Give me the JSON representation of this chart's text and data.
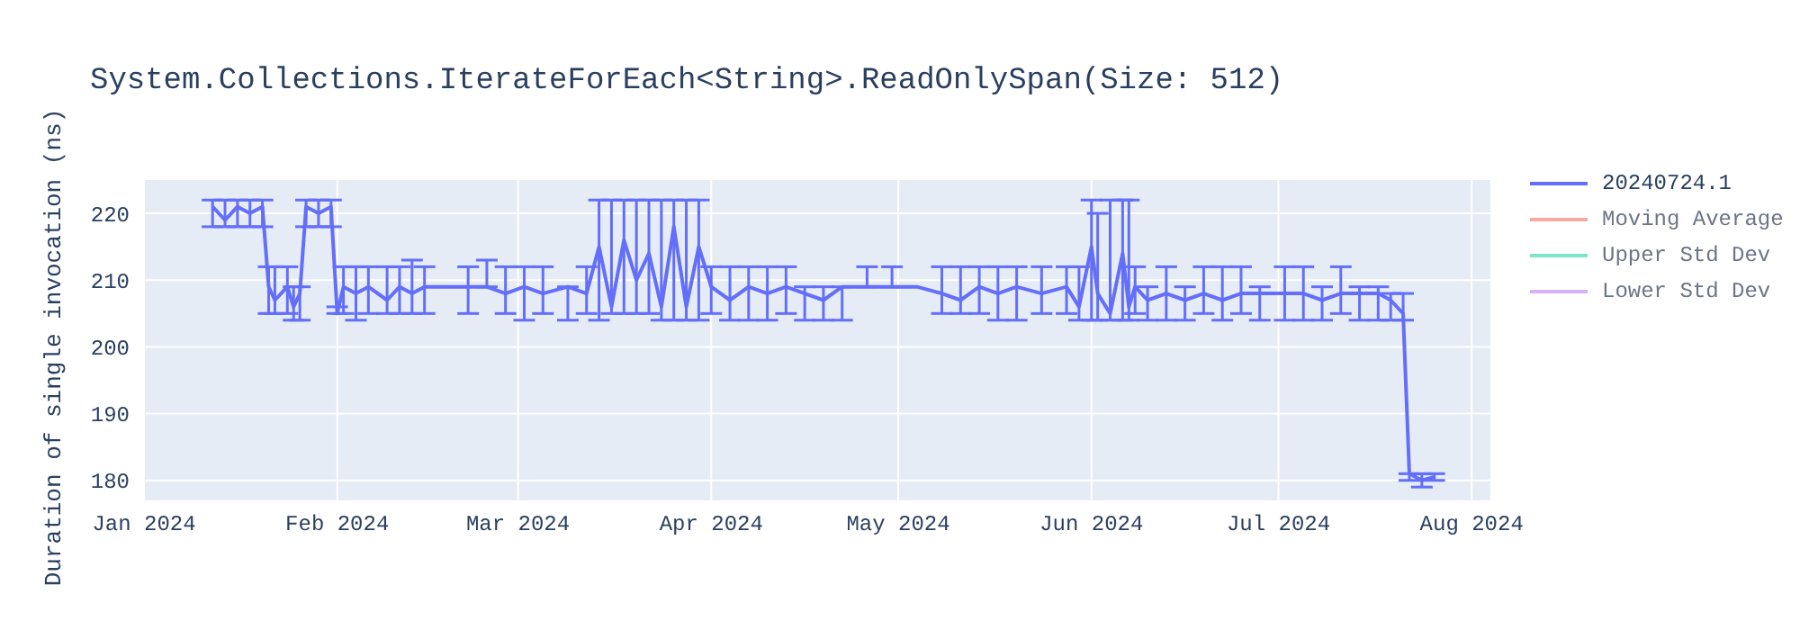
{
  "chart_data": {
    "type": "line",
    "title": "System.Collections.IterateForEach<String>.ReadOnlySpan(Size: 512)",
    "ylabel": "Duration of single invocation (ns)",
    "xlim": [
      "2024-01-01",
      "2024-08-04"
    ],
    "xticks": [
      {
        "value": "2024-01-01",
        "label": "Jan 2024"
      },
      {
        "value": "2024-02-01",
        "label": "Feb 2024"
      },
      {
        "value": "2024-03-01",
        "label": "Mar 2024"
      },
      {
        "value": "2024-04-01",
        "label": "Apr 2024"
      },
      {
        "value": "2024-05-01",
        "label": "May 2024"
      },
      {
        "value": "2024-06-01",
        "label": "Jun 2024"
      },
      {
        "value": "2024-07-01",
        "label": "Jul 2024"
      },
      {
        "value": "2024-08-01",
        "label": "Aug 2024"
      }
    ],
    "ylim": [
      177,
      225
    ],
    "yticks": [
      180,
      190,
      200,
      210,
      220
    ],
    "grid": true,
    "legend": "top right",
    "marker": "none",
    "line_style": "solid",
    "series": [
      {
        "name": "20240724.1",
        "color": "#636efa",
        "x": [
          "2024-01-12",
          "2024-01-14",
          "2024-01-16",
          "2024-01-18",
          "2024-01-20",
          "2024-01-21",
          "2024-01-22",
          "2024-01-24",
          "2024-01-25",
          "2024-01-26",
          "2024-01-27",
          "2024-01-29",
          "2024-01-31",
          "2024-02-01",
          "2024-02-02",
          "2024-02-04",
          "2024-02-06",
          "2024-02-09",
          "2024-02-11",
          "2024-02-13",
          "2024-02-15",
          "2024-02-17",
          "2024-02-22",
          "2024-02-25",
          "2024-02-28",
          "2024-03-02",
          "2024-03-05",
          "2024-03-09",
          "2024-03-12",
          "2024-03-14",
          "2024-03-16",
          "2024-03-18",
          "2024-03-20",
          "2024-03-22",
          "2024-03-24",
          "2024-03-26",
          "2024-03-28",
          "2024-03-30",
          "2024-04-01",
          "2024-04-04",
          "2024-04-07",
          "2024-04-10",
          "2024-04-13",
          "2024-04-16",
          "2024-04-19",
          "2024-04-22",
          "2024-04-26",
          "2024-04-30",
          "2024-05-04",
          "2024-05-08",
          "2024-05-11",
          "2024-05-14",
          "2024-05-17",
          "2024-05-20",
          "2024-05-24",
          "2024-05-28",
          "2024-05-30",
          "2024-06-01",
          "2024-06-02",
          "2024-06-04",
          "2024-06-06",
          "2024-06-07",
          "2024-06-08",
          "2024-06-10",
          "2024-06-13",
          "2024-06-16",
          "2024-06-19",
          "2024-06-22",
          "2024-06-25",
          "2024-06-28",
          "2024-07-02",
          "2024-07-05",
          "2024-07-08",
          "2024-07-11",
          "2024-07-14",
          "2024-07-17",
          "2024-07-19",
          "2024-07-21",
          "2024-07-22",
          "2024-07-24",
          "2024-07-26"
        ],
        "values": [
          221,
          219,
          221,
          220,
          221,
          209,
          207,
          209,
          206,
          208,
          221,
          220,
          221,
          205,
          209,
          208,
          209,
          207,
          209,
          208,
          209,
          209,
          209,
          209,
          208,
          209,
          208,
          209,
          208,
          215,
          206,
          216,
          210,
          214,
          206,
          218,
          206,
          215,
          209,
          207,
          209,
          208,
          209,
          208,
          207,
          209,
          209,
          209,
          209,
          208,
          207,
          209,
          208,
          209,
          208,
          209,
          206,
          215,
          208,
          205,
          214,
          206,
          209,
          207,
          208,
          207,
          208,
          207,
          208,
          208,
          208,
          208,
          207,
          208,
          208,
          208,
          207,
          205,
          181,
          180,
          180.5
        ],
        "errors": [
          [
            218,
            222
          ],
          [
            218,
            222
          ],
          [
            218,
            222
          ],
          [
            218,
            222
          ],
          [
            218,
            222
          ],
          [
            205,
            212
          ],
          [
            205,
            212
          ],
          [
            205,
            212
          ],
          [
            204,
            209
          ],
          [
            204,
            209
          ],
          [
            218,
            222
          ],
          [
            218,
            222
          ],
          [
            218,
            222
          ],
          [
            205,
            206
          ],
          [
            205,
            212
          ],
          [
            204,
            212
          ],
          [
            205,
            212
          ],
          [
            205,
            212
          ],
          [
            205,
            212
          ],
          [
            205,
            213
          ],
          [
            205,
            212
          ],
          null,
          [
            205,
            212
          ],
          [
            209,
            213
          ],
          [
            205,
            212
          ],
          [
            204,
            212
          ],
          [
            205,
            212
          ],
          [
            204,
            209
          ],
          [
            205,
            212
          ],
          [
            204,
            222
          ],
          [
            205,
            222
          ],
          [
            205,
            222
          ],
          [
            205,
            222
          ],
          [
            205,
            222
          ],
          [
            204,
            222
          ],
          [
            204,
            222
          ],
          [
            204,
            222
          ],
          [
            204,
            222
          ],
          [
            205,
            212
          ],
          [
            204,
            212
          ],
          [
            204,
            212
          ],
          [
            204,
            212
          ],
          [
            205,
            212
          ],
          [
            204,
            209
          ],
          [
            204,
            209
          ],
          [
            204,
            209
          ],
          [
            209,
            212
          ],
          [
            209,
            212
          ],
          null,
          [
            205,
            212
          ],
          [
            205,
            212
          ],
          [
            205,
            212
          ],
          [
            204,
            212
          ],
          [
            204,
            212
          ],
          [
            205,
            212
          ],
          [
            205,
            212
          ],
          [
            204,
            212
          ],
          [
            204,
            222
          ],
          [
            204,
            220
          ],
          [
            204,
            222
          ],
          [
            204,
            222
          ],
          [
            204,
            222
          ],
          [
            205,
            212
          ],
          [
            204,
            209
          ],
          [
            204,
            212
          ],
          [
            204,
            209
          ],
          [
            205,
            212
          ],
          [
            204,
            212
          ],
          [
            205,
            212
          ],
          [
            204,
            209
          ],
          [
            204,
            212
          ],
          [
            204,
            212
          ],
          [
            204,
            209
          ],
          [
            205,
            212
          ],
          [
            204,
            209
          ],
          [
            204,
            209
          ],
          [
            204,
            208
          ],
          [
            204,
            208
          ],
          [
            180,
            181
          ],
          [
            179,
            181
          ],
          [
            180,
            181
          ]
        ]
      },
      {
        "name": "Moving Average",
        "color": "#ef553b"
      },
      {
        "name": "Upper Std Dev",
        "color": "#00cc96"
      },
      {
        "name": "Lower Std Dev",
        "color": "#ab63fa"
      }
    ]
  }
}
